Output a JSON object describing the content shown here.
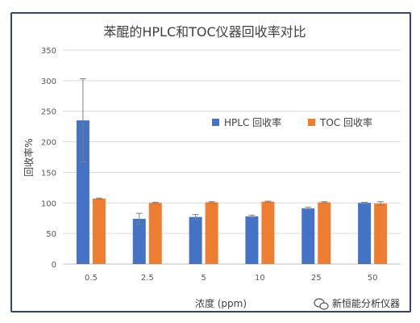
{
  "chart_data": {
    "type": "bar",
    "title": "苯醌的HPLC和TOC仪器回收率对比",
    "xlabel": "浓度 (ppm)",
    "ylabel": "回收率%",
    "ylim": [
      0,
      350
    ],
    "yticks": [
      "0",
      "50",
      "100",
      "150",
      "200",
      "250",
      "300",
      "350"
    ],
    "categories": [
      "0.5",
      "2.5",
      "5",
      "10",
      "25",
      "50"
    ],
    "grid": true,
    "legend_position": "right",
    "series": [
      {
        "name": "HPLC 回收率",
        "color": "#4472c4",
        "values": [
          235,
          74,
          77,
          78,
          91,
          100
        ],
        "errors": [
          68,
          9,
          4,
          2,
          2,
          1
        ]
      },
      {
        "name": "TOC 回收率",
        "color": "#ed7d31",
        "values": [
          107,
          100,
          101,
          102,
          101,
          99
        ],
        "errors": [
          1,
          1,
          1,
          1,
          1,
          3
        ]
      }
    ]
  },
  "watermark": {
    "text": "新恒能分析仪器",
    "icon": "wechat-icon"
  }
}
